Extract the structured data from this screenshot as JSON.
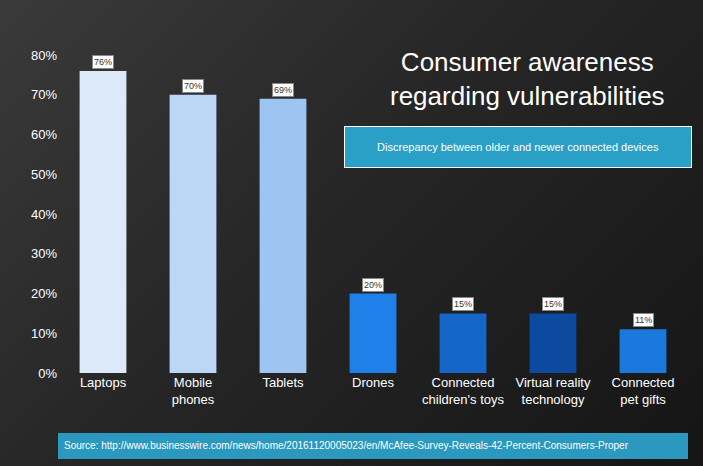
{
  "chart_data": {
    "type": "bar",
    "title": "Consumer awareness regarding vulnerabilities",
    "subtitle": "Discrepancy between older and newer connected devices",
    "source": "Source: http://www.businesswire.com/news/home/20161120005023/en/McAfee-Survey-Reveals-42-Percent-Consumers-Proper",
    "categories": [
      "Laptops",
      "Mobile phones",
      "Tablets",
      "Drones",
      "Connected children's toys",
      "Virtual reality technology",
      "Connected pet gifts"
    ],
    "values": [
      76,
      70,
      69,
      20,
      15,
      15,
      11
    ],
    "value_labels": [
      "76%",
      "70%",
      "69%",
      "20%",
      "15%",
      "15%",
      "11%"
    ],
    "colors": [
      "#dbe9f9",
      "#bcd6f6",
      "#9ec5f2",
      "#1e80e8",
      "#1466c8",
      "#0b4a9e",
      "#1b78dc"
    ],
    "ylim": [
      0,
      80
    ],
    "yticks": [
      {
        "value": 0,
        "label": "0%"
      },
      {
        "value": 10,
        "label": "10%"
      },
      {
        "value": 20,
        "label": "20%"
      },
      {
        "value": 30,
        "label": "30%"
      },
      {
        "value": 40,
        "label": "40%"
      },
      {
        "value": 50,
        "label": "50%"
      },
      {
        "value": 60,
        "label": "60%"
      },
      {
        "value": 70,
        "label": "70%"
      },
      {
        "value": 80,
        "label": "80%"
      }
    ],
    "grid": false,
    "data_labels": true
  }
}
